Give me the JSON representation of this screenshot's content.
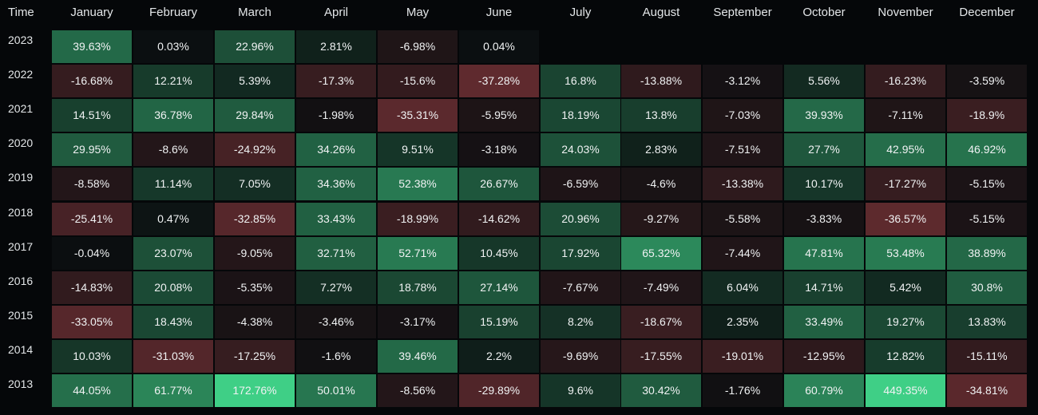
{
  "chart_data": {
    "type": "heatmap",
    "time_label": "Time",
    "months": [
      "January",
      "February",
      "March",
      "April",
      "May",
      "June",
      "July",
      "August",
      "September",
      "October",
      "November",
      "December"
    ],
    "colors": {
      "positive": "#3fcf86",
      "negative": "#b8484e",
      "neutral": "#0b0e10"
    },
    "rows": [
      {
        "year": "2023",
        "values": [
          "39.63%",
          "0.03%",
          "22.96%",
          "2.81%",
          "-6.98%",
          "0.04%",
          null,
          null,
          null,
          null,
          null,
          null
        ]
      },
      {
        "year": "2022",
        "values": [
          "-16.68%",
          "12.21%",
          "5.39%",
          "-17.3%",
          "-15.6%",
          "-37.28%",
          "16.8%",
          "-13.88%",
          "-3.12%",
          "5.56%",
          "-16.23%",
          "-3.59%"
        ]
      },
      {
        "year": "2021",
        "values": [
          "14.51%",
          "36.78%",
          "29.84%",
          "-1.98%",
          "-35.31%",
          "-5.95%",
          "18.19%",
          "13.8%",
          "-7.03%",
          "39.93%",
          "-7.11%",
          "-18.9%"
        ]
      },
      {
        "year": "2020",
        "values": [
          "29.95%",
          "-8.6%",
          "-24.92%",
          "34.26%",
          "9.51%",
          "-3.18%",
          "24.03%",
          "2.83%",
          "-7.51%",
          "27.7%",
          "42.95%",
          "46.92%"
        ]
      },
      {
        "year": "2019",
        "values": [
          "-8.58%",
          "11.14%",
          "7.05%",
          "34.36%",
          "52.38%",
          "26.67%",
          "-6.59%",
          "-4.6%",
          "-13.38%",
          "10.17%",
          "-17.27%",
          "-5.15%"
        ]
      },
      {
        "year": "2018",
        "values": [
          "-25.41%",
          "0.47%",
          "-32.85%",
          "33.43%",
          "-18.99%",
          "-14.62%",
          "20.96%",
          "-9.27%",
          "-5.58%",
          "-3.83%",
          "-36.57%",
          "-5.15%"
        ]
      },
      {
        "year": "2017",
        "values": [
          "-0.04%",
          "23.07%",
          "-9.05%",
          "32.71%",
          "52.71%",
          "10.45%",
          "17.92%",
          "65.32%",
          "-7.44%",
          "47.81%",
          "53.48%",
          "38.89%"
        ]
      },
      {
        "year": "2016",
        "values": [
          "-14.83%",
          "20.08%",
          "-5.35%",
          "7.27%",
          "18.78%",
          "27.14%",
          "-7.67%",
          "-7.49%",
          "6.04%",
          "14.71%",
          "5.42%",
          "30.8%"
        ]
      },
      {
        "year": "2015",
        "values": [
          "-33.05%",
          "18.43%",
          "-4.38%",
          "-3.46%",
          "-3.17%",
          "15.19%",
          "8.2%",
          "-18.67%",
          "2.35%",
          "33.49%",
          "19.27%",
          "13.83%"
        ]
      },
      {
        "year": "2014",
        "values": [
          "10.03%",
          "-31.03%",
          "-17.25%",
          "-1.6%",
          "39.46%",
          "2.2%",
          "-9.69%",
          "-17.55%",
          "-19.01%",
          "-12.95%",
          "12.82%",
          "-15.11%"
        ]
      },
      {
        "year": "2013",
        "values": [
          "44.05%",
          "61.77%",
          "172.76%",
          "50.01%",
          "-8.56%",
          "-29.89%",
          "9.6%",
          "30.42%",
          "-1.76%",
          "60.79%",
          "449.35%",
          "-34.81%"
        ]
      }
    ]
  }
}
